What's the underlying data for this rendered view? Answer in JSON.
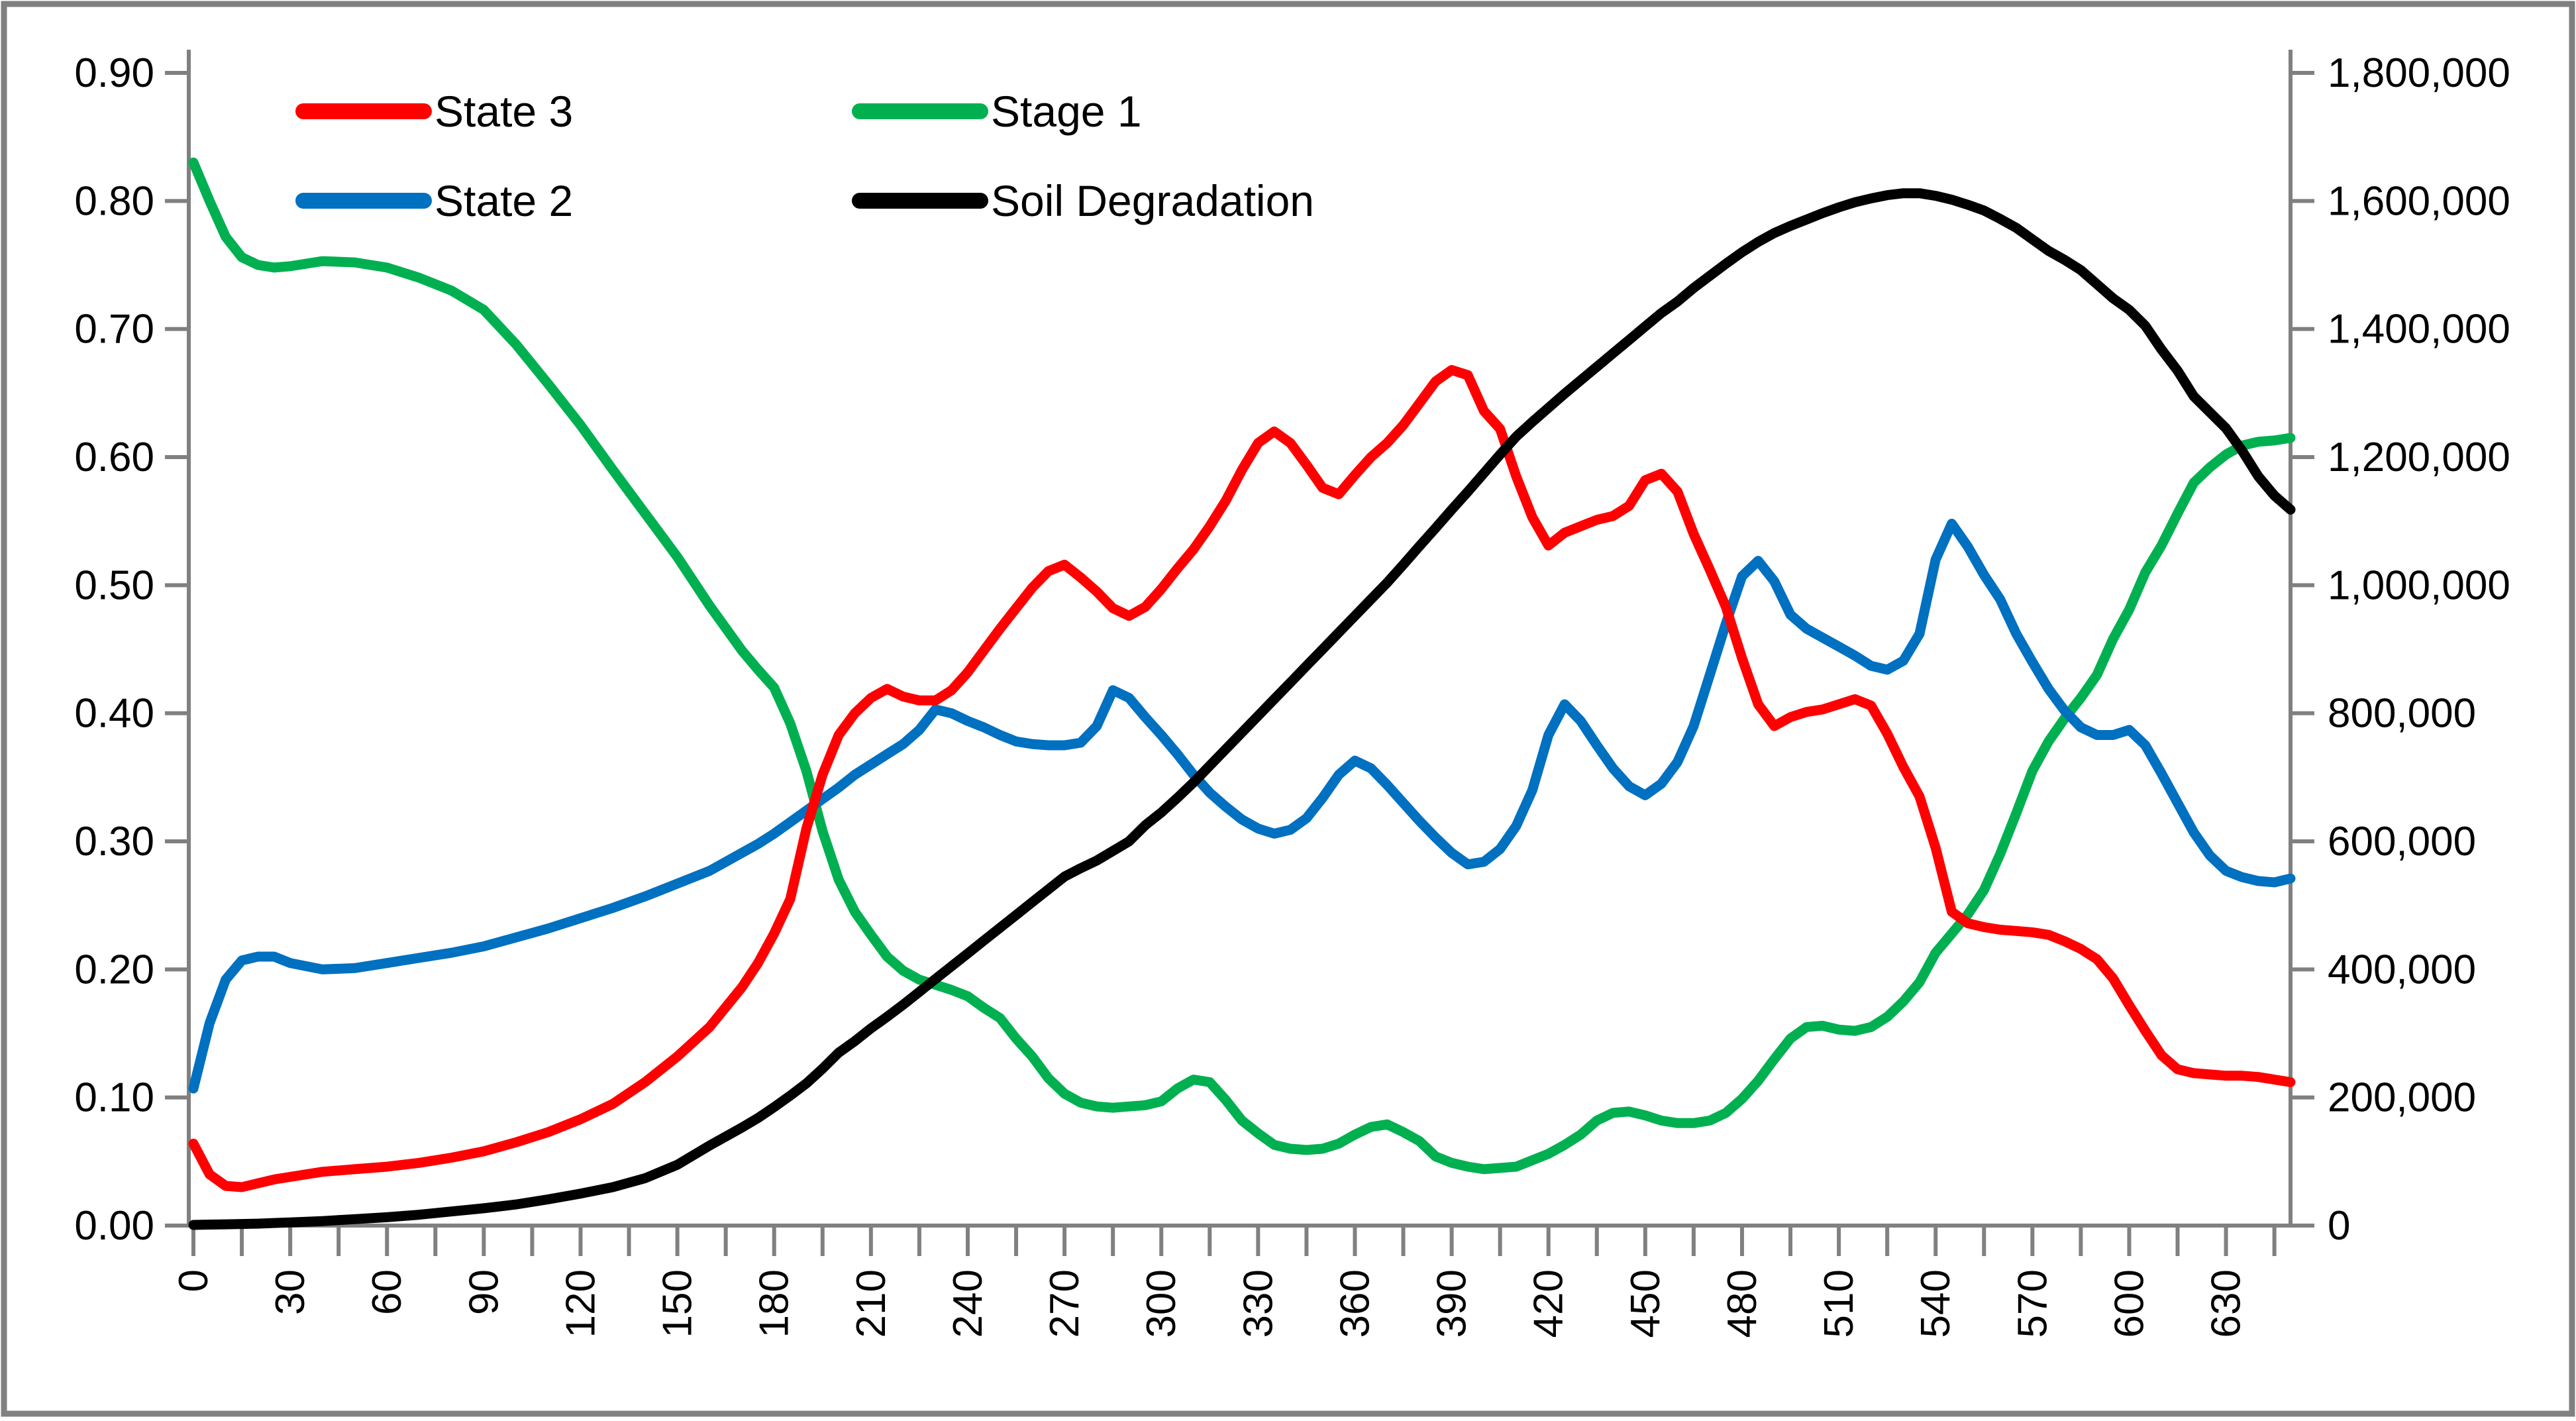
{
  "colors": {
    "state3": "#FF0000",
    "state2": "#0070C0",
    "stage1": "#00B050",
    "soil": "#000000",
    "axis": "#808080",
    "frame": "#808080",
    "background": "#FFFFFF",
    "text": "#000000"
  },
  "legend": {
    "items": [
      {
        "label": "State 3",
        "series": "state3",
        "color": "#FF0000"
      },
      {
        "label": "Stage 1",
        "series": "stage1",
        "color": "#00B050"
      },
      {
        "label": "State 2",
        "series": "state2",
        "color": "#0070C0"
      },
      {
        "label": "Soil Degradation",
        "series": "soil",
        "color": "#000000"
      }
    ]
  },
  "chart_data": {
    "type": "line",
    "title": "",
    "xlabel": "",
    "ylabel_left": "",
    "ylabel_right": "",
    "grid": false,
    "legend_position": "top-left-inside",
    "axes": {
      "x": {
        "min": 0,
        "max": 650,
        "label_step": 30,
        "minor_step": 15,
        "tick_labels": [
          "0",
          "30",
          "60",
          "90",
          "120",
          "150",
          "180",
          "210",
          "240",
          "270",
          "300",
          "330",
          "360",
          "390",
          "420",
          "450",
          "480",
          "510",
          "540",
          "570",
          "600",
          "630"
        ]
      },
      "left": {
        "min": 0.0,
        "max": 0.9,
        "step": 0.1,
        "tick_labels": [
          "0.00",
          "0.10",
          "0.20",
          "0.30",
          "0.40",
          "0.50",
          "0.60",
          "0.70",
          "0.80",
          "0.90"
        ]
      },
      "right": {
        "min": 0,
        "max": 1800000,
        "step": 200000,
        "tick_labels": [
          "0",
          "200,000",
          "400,000",
          "600,000",
          "800,000",
          "1,000,000",
          "1,200,000",
          "1,400,000",
          "1,600,000",
          "1,800,000"
        ]
      }
    },
    "x": [
      0,
      5,
      10,
      15,
      20,
      25,
      30,
      40,
      50,
      60,
      70,
      80,
      90,
      100,
      110,
      120,
      130,
      140,
      150,
      160,
      170,
      175,
      180,
      185,
      190,
      195,
      200,
      205,
      210,
      215,
      220,
      225,
      230,
      235,
      240,
      245,
      250,
      255,
      260,
      265,
      270,
      275,
      280,
      285,
      290,
      295,
      300,
      305,
      310,
      315,
      320,
      325,
      330,
      335,
      340,
      345,
      350,
      355,
      360,
      365,
      370,
      375,
      380,
      385,
      390,
      395,
      400,
      405,
      410,
      415,
      420,
      425,
      430,
      435,
      440,
      445,
      450,
      455,
      460,
      465,
      470,
      475,
      480,
      485,
      490,
      495,
      500,
      505,
      510,
      515,
      520,
      525,
      530,
      535,
      540,
      545,
      550,
      555,
      560,
      565,
      570,
      575,
      580,
      585,
      590,
      595,
      600,
      605,
      610,
      615,
      620,
      625,
      630,
      635,
      640,
      645,
      650
    ],
    "series": [
      {
        "name": "State 3",
        "axis": "left",
        "color": "#FF0000",
        "values": [
          0.064,
          0.04,
          0.031,
          0.03,
          0.033,
          0.036,
          0.038,
          0.042,
          0.044,
          0.046,
          0.049,
          0.053,
          0.058,
          0.065,
          0.073,
          0.083,
          0.095,
          0.112,
          0.132,
          0.155,
          0.186,
          0.205,
          0.228,
          0.255,
          0.31,
          0.352,
          0.383,
          0.4,
          0.412,
          0.419,
          0.413,
          0.41,
          0.41,
          0.418,
          0.432,
          0.449,
          0.466,
          0.482,
          0.498,
          0.511,
          0.516,
          0.506,
          0.495,
          0.482,
          0.476,
          0.483,
          0.497,
          0.513,
          0.528,
          0.546,
          0.566,
          0.59,
          0.611,
          0.62,
          0.611,
          0.594,
          0.576,
          0.571,
          0.586,
          0.6,
          0.611,
          0.625,
          0.642,
          0.659,
          0.668,
          0.664,
          0.636,
          0.622,
          0.585,
          0.553,
          0.531,
          0.541,
          0.546,
          0.551,
          0.554,
          0.562,
          0.582,
          0.587,
          0.573,
          0.54,
          0.512,
          0.483,
          0.443,
          0.407,
          0.39,
          0.397,
          0.401,
          0.403,
          0.407,
          0.411,
          0.406,
          0.384,
          0.358,
          0.335,
          0.295,
          0.245,
          0.236,
          0.233,
          0.231,
          0.23,
          0.229,
          0.227,
          0.222,
          0.216,
          0.208,
          0.193,
          0.172,
          0.152,
          0.133,
          0.122,
          0.119,
          0.118,
          0.117,
          0.117,
          0.116,
          0.114,
          0.112
        ]
      },
      {
        "name": "State 2",
        "axis": "left",
        "color": "#0070C0",
        "values": [
          0.107,
          0.158,
          0.192,
          0.207,
          0.21,
          0.21,
          0.205,
          0.2,
          0.201,
          0.205,
          0.209,
          0.213,
          0.218,
          0.225,
          0.232,
          0.24,
          0.248,
          0.257,
          0.267,
          0.277,
          0.291,
          0.298,
          0.306,
          0.315,
          0.324,
          0.333,
          0.342,
          0.352,
          0.36,
          0.368,
          0.376,
          0.387,
          0.403,
          0.4,
          0.394,
          0.389,
          0.383,
          0.378,
          0.376,
          0.375,
          0.375,
          0.377,
          0.39,
          0.418,
          0.412,
          0.397,
          0.383,
          0.368,
          0.352,
          0.338,
          0.327,
          0.317,
          0.31,
          0.306,
          0.309,
          0.318,
          0.334,
          0.352,
          0.363,
          0.357,
          0.344,
          0.33,
          0.316,
          0.303,
          0.291,
          0.282,
          0.284,
          0.294,
          0.312,
          0.34,
          0.383,
          0.407,
          0.394,
          0.375,
          0.357,
          0.343,
          0.336,
          0.345,
          0.362,
          0.39,
          0.43,
          0.47,
          0.507,
          0.519,
          0.503,
          0.477,
          0.466,
          0.459,
          0.452,
          0.445,
          0.437,
          0.434,
          0.441,
          0.462,
          0.52,
          0.548,
          0.53,
          0.508,
          0.489,
          0.462,
          0.44,
          0.419,
          0.402,
          0.389,
          0.383,
          0.383,
          0.387,
          0.375,
          0.353,
          0.33,
          0.307,
          0.289,
          0.277,
          0.272,
          0.269,
          0.268,
          0.271
        ]
      },
      {
        "name": "Stage 1",
        "axis": "left",
        "color": "#00B050",
        "values": [
          0.83,
          0.8,
          0.772,
          0.756,
          0.75,
          0.748,
          0.749,
          0.753,
          0.752,
          0.748,
          0.74,
          0.73,
          0.715,
          0.688,
          0.657,
          0.625,
          0.59,
          0.556,
          0.522,
          0.484,
          0.449,
          0.434,
          0.42,
          0.392,
          0.355,
          0.308,
          0.27,
          0.245,
          0.227,
          0.21,
          0.199,
          0.192,
          0.188,
          0.184,
          0.179,
          0.17,
          0.162,
          0.146,
          0.132,
          0.115,
          0.103,
          0.096,
          0.093,
          0.092,
          0.093,
          0.094,
          0.097,
          0.107,
          0.114,
          0.112,
          0.098,
          0.082,
          0.072,
          0.063,
          0.06,
          0.059,
          0.06,
          0.064,
          0.071,
          0.077,
          0.079,
          0.073,
          0.066,
          0.054,
          0.049,
          0.046,
          0.044,
          0.045,
          0.046,
          0.051,
          0.056,
          0.063,
          0.071,
          0.082,
          0.088,
          0.089,
          0.086,
          0.082,
          0.08,
          0.08,
          0.082,
          0.088,
          0.099,
          0.113,
          0.13,
          0.146,
          0.155,
          0.156,
          0.153,
          0.152,
          0.155,
          0.163,
          0.175,
          0.19,
          0.213,
          0.228,
          0.243,
          0.262,
          0.29,
          0.322,
          0.355,
          0.378,
          0.396,
          0.412,
          0.43,
          0.458,
          0.481,
          0.51,
          0.531,
          0.556,
          0.58,
          0.592,
          0.602,
          0.609,
          0.612,
          0.613,
          0.615
        ]
      },
      {
        "name": "Soil Degradation",
        "axis": "right",
        "color": "#000000",
        "values": [
          1000,
          1500,
          2000,
          2500,
          3000,
          4000,
          5000,
          7000,
          10000,
          13000,
          17000,
          22000,
          27000,
          33000,
          41000,
          50000,
          60000,
          74000,
          95000,
          125000,
          153000,
          168000,
          185000,
          203000,
          222000,
          245000,
          270000,
          288000,
          308000,
          326000,
          345000,
          365000,
          385000,
          405000,
          425000,
          445000,
          465000,
          485000,
          505000,
          525000,
          545000,
          558000,
          570000,
          585000,
          600000,
          625000,
          645000,
          668000,
          692000,
          718000,
          744000,
          770000,
          796000,
          822000,
          848000,
          874000,
          900000,
          926000,
          952000,
          978000,
          1004000,
          1032000,
          1061000,
          1089000,
          1118000,
          1146000,
          1175000,
          1204000,
          1232000,
          1255000,
          1277000,
          1299000,
          1320000,
          1341000,
          1362000,
          1383000,
          1404000,
          1425000,
          1443000,
          1464000,
          1483000,
          1502000,
          1520000,
          1536000,
          1550000,
          1561000,
          1571000,
          1581000,
          1590000,
          1598000,
          1604000,
          1609000,
          1612000,
          1612000,
          1608000,
          1602000,
          1594000,
          1585000,
          1572000,
          1558000,
          1540000,
          1522000,
          1508000,
          1492000,
          1470000,
          1448000,
          1430000,
          1405000,
          1368000,
          1335000,
          1295000,
          1270000,
          1245000,
          1210000,
          1170000,
          1140000,
          1118000
        ]
      }
    ]
  }
}
